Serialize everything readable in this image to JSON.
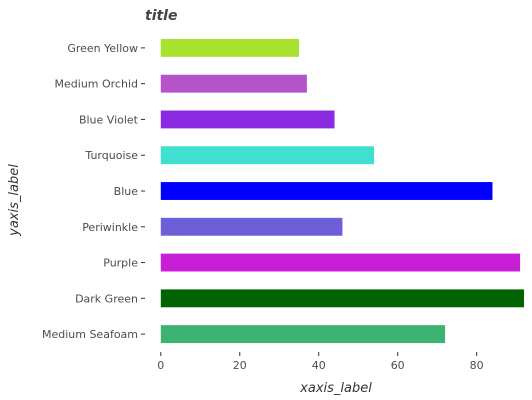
{
  "chart_data": {
    "type": "bar",
    "orientation": "horizontal",
    "title": "title",
    "xlabel": "xaxis_label",
    "ylabel": "yaxis_label",
    "categories": [
      "Green Yellow",
      "Medium Orchid",
      "Blue Violet",
      "Turquoise",
      "Blue",
      "Periwinkle",
      "Purple",
      "Dark Green",
      "Medium Seafoam"
    ],
    "values": [
      35,
      37,
      44,
      54,
      84,
      46,
      91,
      92,
      72
    ],
    "colors": [
      "#a6e22e",
      "#b454c8",
      "#8a2be2",
      "#40e0d0",
      "#0000ff",
      "#6c5fd8",
      "#c71ed6",
      "#006400",
      "#3cb371"
    ],
    "xticks": [
      0,
      20,
      40,
      60,
      80
    ],
    "xtick_labels": [
      "0",
      "20",
      "40",
      "60",
      "80"
    ],
    "xlim": [
      -4,
      93
    ],
    "grid": false,
    "legend": "none"
  }
}
